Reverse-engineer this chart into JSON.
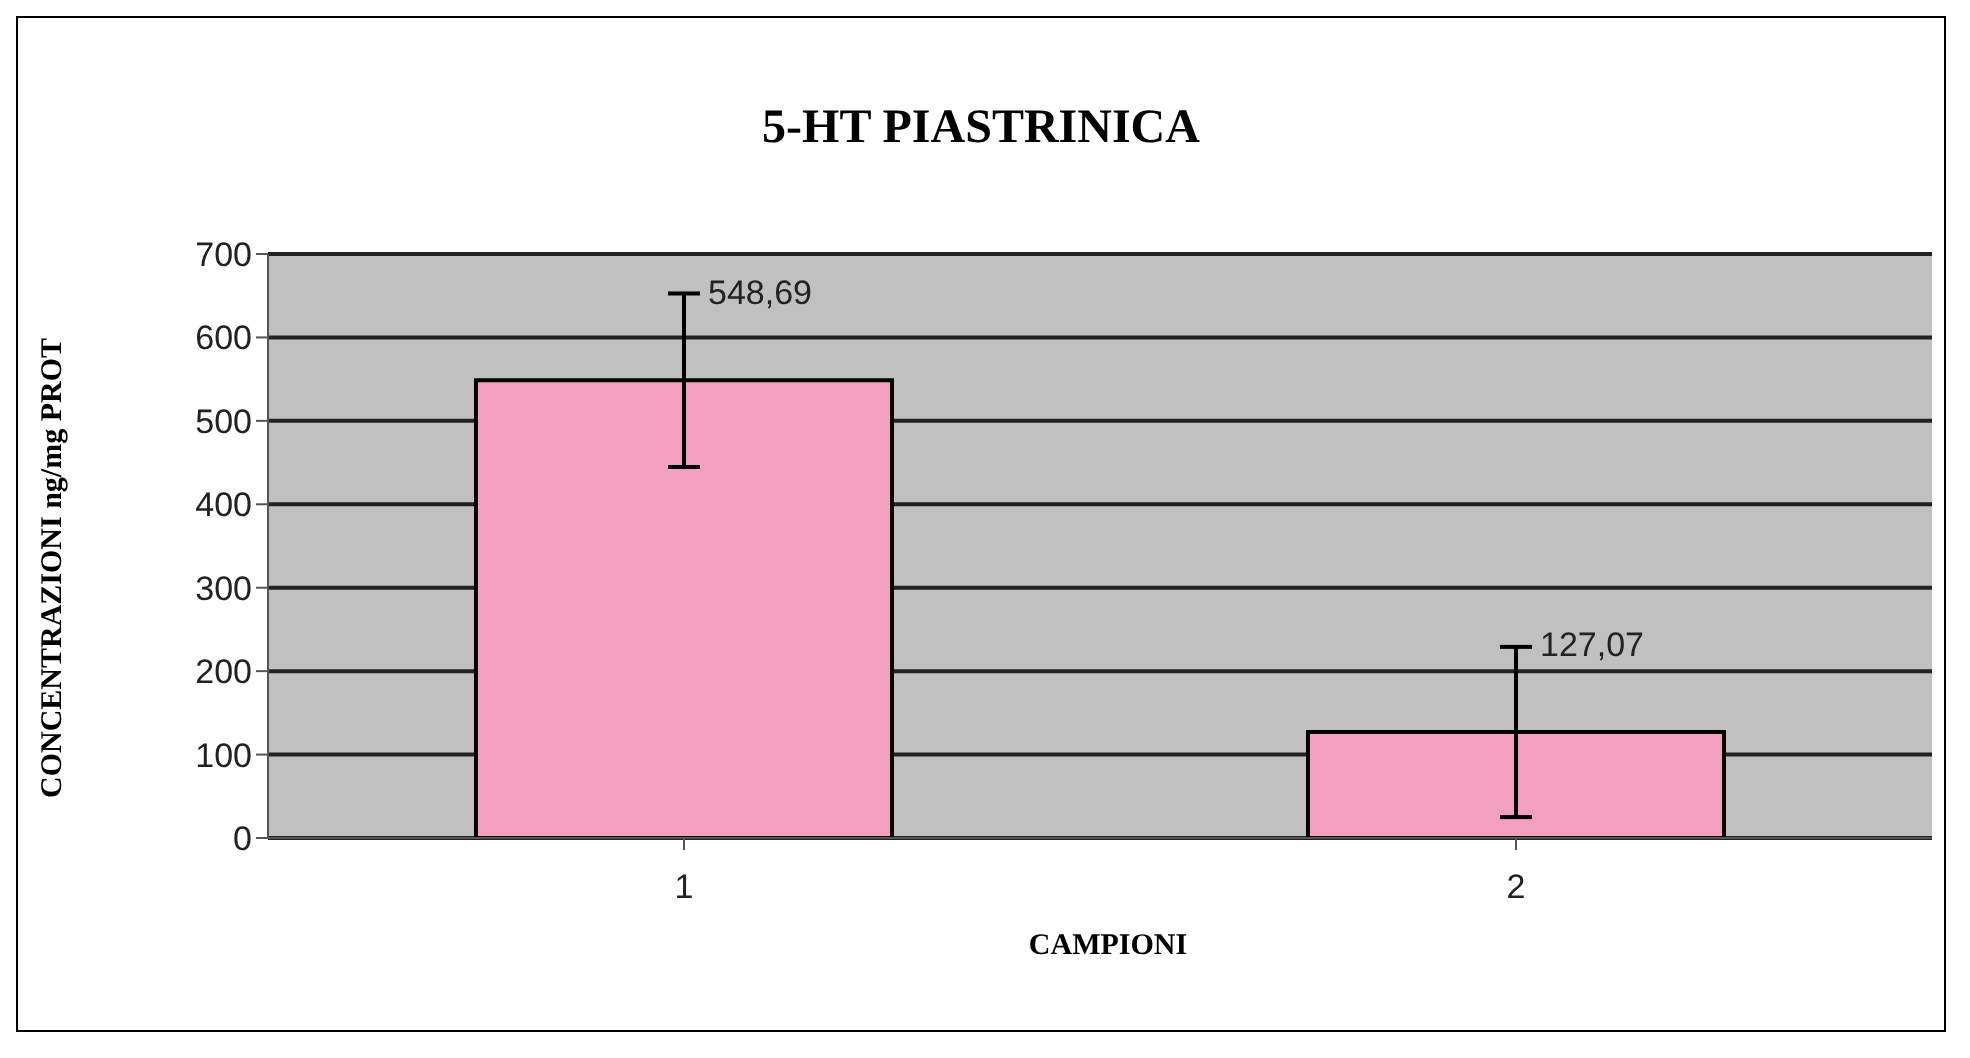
{
  "chart_data": {
    "type": "bar",
    "title": "5-HT PIASTRINICA",
    "xlabel": "CAMPIONI",
    "ylabel": "CONCENTRAZIONI ng/mg PROT",
    "categories": [
      "1",
      "2"
    ],
    "values": [
      548.69,
      127.07
    ],
    "errors": [
      104,
      102
    ],
    "value_labels": [
      "548,69",
      "127,07"
    ],
    "color": "#f29fc0",
    "ylim": [
      0,
      700
    ],
    "yticks": [
      0,
      100,
      200,
      300,
      400,
      500,
      600,
      700
    ],
    "grid": "y",
    "legend": false
  }
}
